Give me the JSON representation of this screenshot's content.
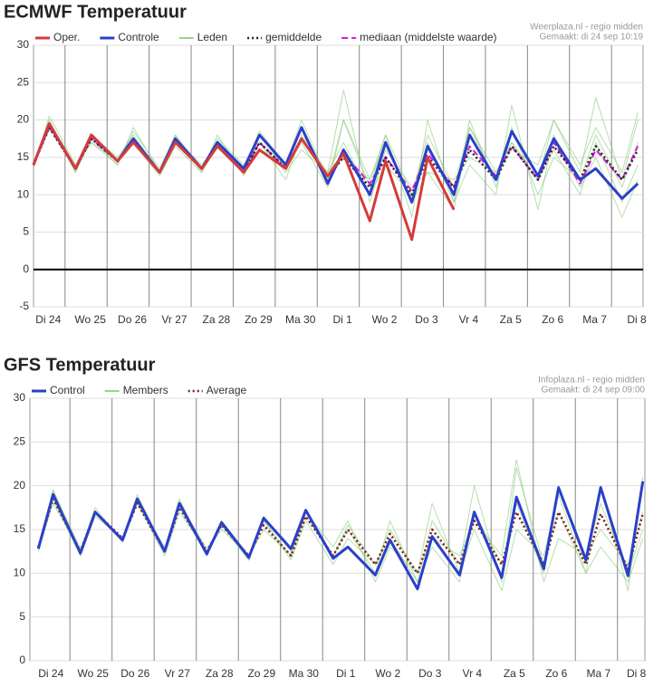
{
  "chart_data": [
    {
      "type": "line",
      "title": "ECMWF Temperatuur",
      "credits": [
        "Weerplaza.nl - regio midden",
        "Gemaakt: di 24 sep 10:19"
      ],
      "xlim": [
        0.25,
        14.75
      ],
      "ylim": [
        -5,
        30
      ],
      "yticks": [
        -5,
        0,
        5,
        10,
        15,
        20,
        25,
        30
      ],
      "reference_line": 0,
      "xgrid": [
        1,
        2,
        3,
        4,
        5,
        6,
        7,
        8,
        9,
        10,
        11,
        12,
        13,
        14
      ],
      "xticks": [
        {
          "value": 0.6,
          "label": "Di 24"
        },
        {
          "value": 1.6,
          "label": "Wo 25"
        },
        {
          "value": 2.6,
          "label": "Do 26"
        },
        {
          "value": 3.6,
          "label": "Vr 27"
        },
        {
          "value": 4.6,
          "label": "Za 28"
        },
        {
          "value": 5.6,
          "label": "Zo 29"
        },
        {
          "value": 6.6,
          "label": "Ma 30"
        },
        {
          "value": 7.6,
          "label": "Di 1"
        },
        {
          "value": 8.6,
          "label": "Wo 2"
        },
        {
          "value": 9.6,
          "label": "Do 3"
        },
        {
          "value": 10.6,
          "label": "Vr 4"
        },
        {
          "value": 11.6,
          "label": "Za 5"
        },
        {
          "value": 12.6,
          "label": "Zo 6"
        },
        {
          "value": 13.6,
          "label": "Ma 7"
        },
        {
          "value": 14.6,
          "label": "Di 8"
        }
      ],
      "x": [
        0.25,
        0.625,
        1.25,
        1.625,
        2.25,
        2.625,
        3.25,
        3.625,
        4.25,
        4.625,
        5.25,
        5.625,
        6.25,
        6.625,
        7.25,
        7.625,
        8.25,
        8.625,
        9.25,
        9.625,
        10.25,
        10.625,
        11.25,
        11.625,
        12.25,
        12.625,
        13.25,
        13.625,
        14.25,
        14.625
      ],
      "series": [
        {
          "name": "Oper.",
          "color": "#d63a3a",
          "width": 3,
          "values": [
            14,
            19.5,
            13.5,
            18,
            14.5,
            17,
            13,
            17,
            13.5,
            16.5,
            13,
            16,
            13.5,
            17.5,
            12.5,
            15.5,
            6.5,
            14.5,
            4,
            15,
            8,
            null,
            null,
            null,
            null,
            null,
            null,
            null,
            null,
            null
          ]
        },
        {
          "name": "Controle",
          "color": "#2b3fcb",
          "width": 3,
          "values": [
            14,
            19.5,
            13.5,
            18,
            14.5,
            17.5,
            13,
            17.5,
            13.5,
            17,
            13.5,
            18,
            14,
            19,
            11.5,
            16,
            10,
            17,
            9,
            16.5,
            10,
            18,
            12,
            18.5,
            12.5,
            17.5,
            12,
            13.5,
            9.5,
            11.5
          ]
        },
        {
          "name": "Leden",
          "color": "#7cc46a",
          "width": 1,
          "values": [
            [
              14,
              20,
              13,
              17.5,
              14,
              18.5,
              13.5,
              18,
              13,
              16.5,
              13,
              17,
              14,
              19,
              12,
              20,
              11,
              18,
              10,
              17,
              9,
              20,
              11,
              19,
              10,
              15,
              12,
              18,
              11,
              17
            ],
            [
              14,
              19,
              13.5,
              18,
              15,
              18,
              13,
              17,
              13.5,
              17.5,
              14,
              17,
              13,
              16,
              13,
              24,
              9,
              16,
              11,
              13,
              12,
              15,
              13,
              17,
              12,
              20,
              14,
              19,
              13,
              21
            ],
            [
              13.5,
              20.5,
              14,
              17,
              14,
              19,
              13,
              18,
              13.5,
              17,
              13.5,
              18.5,
              14,
              20,
              12,
              15,
              12,
              18,
              7,
              20,
              9,
              14,
              10,
              22,
              8,
              18,
              11,
              15,
              7,
              12
            ],
            [
              14,
              19.5,
              13,
              18,
              14.5,
              17,
              12.5,
              16.5,
              13,
              18,
              12.5,
              17,
              12,
              18,
              13,
              17,
              10,
              14,
              10,
              18,
              11,
              19,
              13,
              16,
              14,
              20,
              13,
              23,
              12,
              20
            ],
            [
              14,
              19,
              13.5,
              17,
              14.5,
              17.5,
              13,
              17.5,
              14,
              16.5,
              13,
              18,
              13.5,
              17,
              11,
              20,
              12,
              17,
              9,
              13,
              8,
              19,
              12,
              17,
              12,
              16,
              10,
              17,
              9,
              14
            ]
          ]
        },
        {
          "name": "gemiddelde",
          "color": "#222222",
          "width": 2.5,
          "dash": "dotted",
          "values": [
            14,
            19,
            13.5,
            17.5,
            14.5,
            17.5,
            13,
            17,
            13.5,
            16.5,
            13,
            17,
            13.5,
            17.5,
            12.5,
            15,
            11,
            15,
            10,
            15,
            11,
            16,
            12,
            16.5,
            12,
            16.5,
            12,
            16.5,
            12,
            16
          ]
        },
        {
          "name": "mediaan (middelste waarde)",
          "color": "#d51bd5",
          "width": 2,
          "dash": "dashed",
          "values": [
            14,
            19,
            13.5,
            17.5,
            14.5,
            17.5,
            13,
            17,
            13.5,
            16.5,
            13,
            17,
            13.5,
            17.5,
            12.5,
            15.5,
            11.5,
            15,
            10.5,
            15.5,
            11,
            16.5,
            12.5,
            16.5,
            12,
            17,
            11.5,
            16,
            12,
            16.5
          ]
        }
      ]
    },
    {
      "type": "line",
      "title": "GFS Temperatuur",
      "credits": [
        "Infoplaza.nl - regio midden",
        "Gemaakt: di 24 sep 09:00"
      ],
      "xlim": [
        0.05,
        14.65
      ],
      "ylim": [
        0,
        30
      ],
      "yticks": [
        0,
        5,
        10,
        15,
        20,
        25,
        30
      ],
      "xgrid": [
        1,
        2,
        3,
        4,
        5,
        6,
        7,
        8,
        9,
        10,
        11,
        12,
        13,
        14
      ],
      "xticks": [
        {
          "value": 0.55,
          "label": "Di 24"
        },
        {
          "value": 1.55,
          "label": "Wo 25"
        },
        {
          "value": 2.55,
          "label": "Do 26"
        },
        {
          "value": 3.55,
          "label": "Vr 27"
        },
        {
          "value": 4.55,
          "label": "Za 28"
        },
        {
          "value": 5.55,
          "label": "Zo 29"
        },
        {
          "value": 6.55,
          "label": "Ma 30"
        },
        {
          "value": 7.55,
          "label": "Di 1"
        },
        {
          "value": 8.55,
          "label": "Wo 2"
        },
        {
          "value": 9.55,
          "label": "Do 3"
        },
        {
          "value": 10.55,
          "label": "Vr 4"
        },
        {
          "value": 11.55,
          "label": "Za 5"
        },
        {
          "value": 12.55,
          "label": "Zo 6"
        },
        {
          "value": 13.55,
          "label": "Ma 7"
        },
        {
          "value": 14.45,
          "label": "Di 8"
        }
      ],
      "x": [
        0.25,
        0.6,
        1.25,
        1.6,
        2.25,
        2.6,
        3.25,
        3.6,
        4.25,
        4.6,
        5.25,
        5.6,
        6.25,
        6.6,
        7.25,
        7.6,
        8.25,
        8.6,
        9.25,
        9.6,
        10.25,
        10.6,
        11.25,
        11.6,
        12.25,
        12.6,
        13.25,
        13.6,
        14.25,
        14.6
      ],
      "series": [
        {
          "name": "Control",
          "color": "#2b3fcb",
          "width": 3,
          "values": [
            12.8,
            19,
            12.3,
            17,
            13.8,
            18.5,
            12.5,
            18,
            12.2,
            15.8,
            11.8,
            16.3,
            12.8,
            17.2,
            11.7,
            13,
            9.8,
            13.8,
            8.2,
            14.2,
            9.8,
            17,
            9.5,
            18.7,
            10.5,
            19.8,
            11.5,
            19.8,
            9.7,
            20.5
          ]
        },
        {
          "name": "Members",
          "color": "#7cc46a",
          "width": 1,
          "values": [
            [
              13,
              19.5,
              12,
              17,
              14,
              19,
              12.5,
              18.5,
              12,
              16,
              11.5,
              16.5,
              12.5,
              17,
              12,
              15,
              10,
              16,
              9,
              16,
              11,
              20,
              9,
              22,
              11,
              17,
              10,
              20,
              8,
              21
            ],
            [
              12.5,
              18,
              12.5,
              17.5,
              13.5,
              18,
              12,
              17,
              12.5,
              15,
              12,
              16,
              11.5,
              16,
              11,
              14,
              11,
              15,
              10,
              14,
              12,
              16,
              12,
              23,
              9,
              14,
              12,
              15,
              11,
              17
            ],
            [
              13,
              18.5,
              12,
              16.5,
              14,
              18,
              13,
              17.5,
              12,
              16,
              12,
              15,
              12,
              17,
              13,
              16,
              9,
              13,
              10,
              18,
              10,
              15,
              8,
              15,
              12,
              19,
              10,
              13,
              9,
              14
            ],
            [
              12.8,
              19.5,
              12.8,
              17,
              14,
              18.5,
              12.5,
              18,
              12.8,
              15.5,
              11.5,
              16,
              12,
              16.5,
              12,
              15.5,
              11,
              14,
              9,
              13,
              9,
              17,
              11,
              18,
              10,
              20,
              12,
              18,
              10,
              15
            ]
          ]
        },
        {
          "name": "Average",
          "color": "#7a1b1b",
          "width": 2.5,
          "dash": "dotted",
          "values": [
            13,
            18.5,
            12.5,
            17,
            14,
            18,
            12.5,
            17.5,
            12.5,
            15.5,
            12,
            15.5,
            12,
            16.5,
            12,
            15,
            11,
            14.5,
            10,
            15,
            11,
            16,
            11,
            17,
            11,
            17,
            11,
            16.8,
            10.5,
            16.8
          ]
        }
      ]
    }
  ]
}
